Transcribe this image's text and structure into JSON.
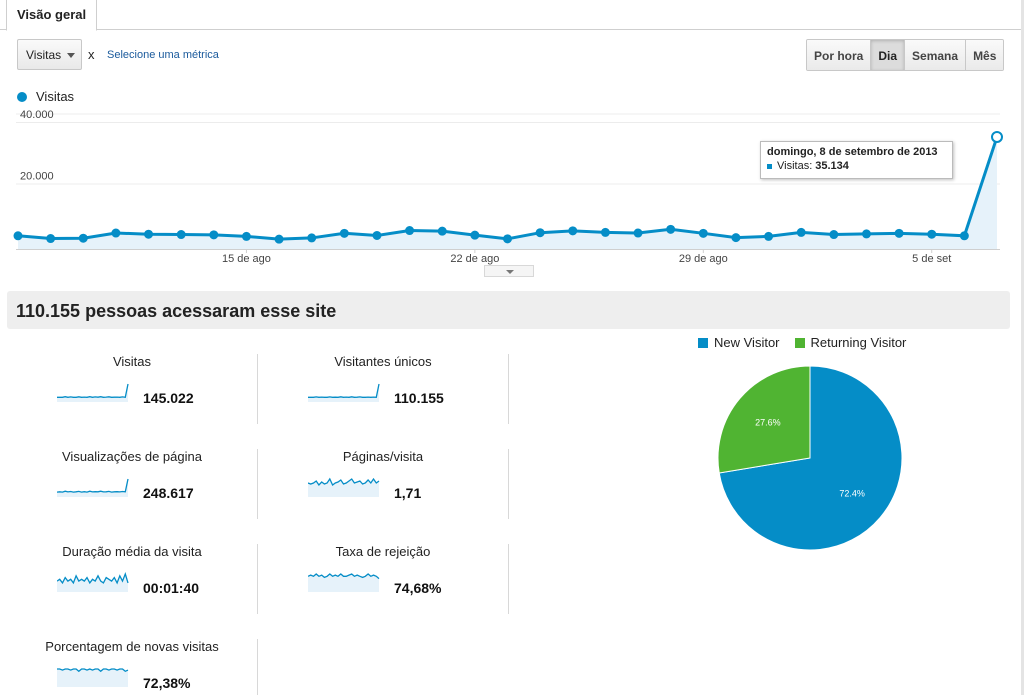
{
  "tab": {
    "label": "Visão geral"
  },
  "controls": {
    "metric_select": "Visitas",
    "remove_label": "x",
    "select_metric_link": "Selecione uma métrica",
    "granularity": [
      "Por hora",
      "Dia",
      "Semana",
      "Mês"
    ],
    "granularity_active": "Dia"
  },
  "legend": {
    "series_label": "Visitas"
  },
  "tooltip": {
    "date": "domingo, 8 de setembro de 2013",
    "label": "Visitas:",
    "value": "35.134"
  },
  "summary": {
    "headline": "110.155 pessoas acessaram esse site"
  },
  "metrics": [
    {
      "label": "Visitas",
      "value": "145.022",
      "trend": [
        2,
        2,
        2,
        2.5,
        2,
        2.3,
        2,
        2,
        2.4,
        2,
        2.2,
        2,
        2.5,
        2,
        2.3,
        2.1,
        2.5,
        2,
        2.2,
        2.4,
        2,
        2.1,
        2.2,
        2,
        2.3,
        2,
        12
      ]
    },
    {
      "label": "Visitantes únicos",
      "value": "110.155",
      "trend": [
        2,
        2,
        2,
        2.3,
        2,
        2.2,
        2,
        2,
        2.3,
        2,
        2.1,
        2,
        2.4,
        2,
        2.2,
        2,
        2.4,
        2,
        2.1,
        2.3,
        2,
        2,
        2.2,
        2,
        2.2,
        2,
        12
      ]
    },
    {
      "label": "Visualizações de página",
      "value": "248.617",
      "trend": [
        2,
        2.2,
        2,
        2.6,
        2.1,
        2.4,
        2,
        2.2,
        2.5,
        2,
        2.3,
        2,
        2.6,
        2.1,
        2.3,
        2.2,
        2.6,
        2.1,
        2.2,
        2.5,
        2,
        2.2,
        2.3,
        2.1,
        2.4,
        2.2,
        11
      ]
    },
    {
      "label": "Páginas/visita",
      "value": "1,71",
      "trend": [
        6,
        5.5,
        6,
        7,
        5,
        6.5,
        5.5,
        6,
        8,
        5,
        6,
        6.5,
        7.5,
        5.5,
        6,
        7,
        8,
        6,
        6.5,
        7,
        5.5,
        6,
        7.5,
        6,
        8,
        6,
        7
      ]
    },
    {
      "label": "Duração média da visita",
      "value": "00:01:40",
      "trend": [
        5,
        6,
        4,
        7,
        5,
        6,
        4,
        8,
        5,
        6,
        5,
        7,
        4,
        6,
        5,
        8,
        5,
        4,
        7,
        6,
        5,
        7,
        4,
        8,
        5,
        9,
        4
      ]
    },
    {
      "label": "Taxa de rejeição",
      "value": "74,68%",
      "trend": [
        6,
        6.5,
        6,
        7,
        6,
        6.5,
        5.5,
        6,
        7,
        6,
        6.5,
        6,
        7,
        6,
        6,
        6.5,
        7,
        6,
        6.5,
        6,
        5.5,
        6,
        7,
        6,
        6.5,
        6,
        5
      ]
    },
    {
      "label": "Porcentagem de novas visitas",
      "value": "72,38%",
      "trend": [
        7,
        7,
        6.5,
        7,
        7,
        6.5,
        7,
        7,
        6,
        7,
        7,
        6.5,
        7,
        6.5,
        7,
        7,
        6,
        7,
        7,
        6.5,
        7,
        7,
        6.5,
        7,
        7,
        6,
        6.5
      ]
    }
  ],
  "chart_data": [
    {
      "type": "line",
      "series": [
        {
          "name": "Visitas",
          "values": [
            3000,
            2100,
            2200,
            3900,
            3500,
            3400,
            3300,
            2800,
            1900,
            2300,
            3800,
            3100,
            4700,
            4500,
            3200,
            2000,
            4000,
            4600,
            4100,
            3900,
            5100,
            3800,
            2400,
            2800,
            4100,
            3400,
            3600,
            3800,
            3500,
            3000,
            35134
          ]
        }
      ],
      "x_tick_labels": [
        "15 de ago",
        "22 de ago",
        "29 de ago",
        "5 de set"
      ],
      "y_tick_labels": [
        "20.000",
        "40.000"
      ],
      "ylim": [
        0,
        40000
      ],
      "grid": true
    },
    {
      "type": "pie",
      "slices": [
        {
          "name": "New Visitor",
          "value": 72.4,
          "label": "72.4%",
          "color": "#058dc7"
        },
        {
          "name": "Returning Visitor",
          "value": 27.6,
          "label": "27.6%",
          "color": "#50b432"
        }
      ],
      "legend": "top"
    }
  ]
}
